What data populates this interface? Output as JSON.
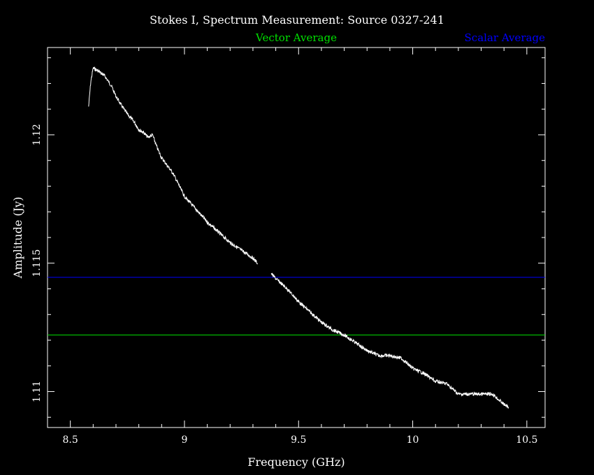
{
  "chart_data": {
    "type": "line",
    "title": "Stokes I, Spectrum Measurement: Source 0327-241",
    "xlabel": "Frequency (GHz)",
    "ylabel": "Amplitude (Jy)",
    "xlim": [
      8.4,
      10.58
    ],
    "ylim": [
      1.1086,
      1.1234
    ],
    "x_ticks": [
      8.5,
      9,
      9.5,
      10,
      10.5
    ],
    "x_tick_labels": [
      "8.5",
      "9",
      "9.5",
      "10",
      "10.5"
    ],
    "y_ticks": [
      1.11,
      1.115,
      1.12
    ],
    "y_tick_labels": [
      "1.11",
      "1.115",
      "1.12"
    ],
    "grid": false,
    "legend_placement": "top",
    "series": [
      {
        "name": "Vector Average",
        "kind": "hline",
        "y": 1.1122,
        "color": "#00e000"
      },
      {
        "name": "Scalar Average",
        "kind": "hline",
        "y": 1.11445,
        "color": "#0000ff"
      },
      {
        "kind": "spectrum",
        "color": "#ffffff",
        "segments": [
          {
            "x": [
              8.58,
              8.59,
              8.6,
              8.62,
              8.65,
              8.68,
              8.7,
              8.72,
              8.75,
              8.78,
              8.8,
              8.82,
              8.84,
              8.86,
              8.88,
              8.9,
              8.95,
              9.0,
              9.05,
              9.1,
              9.15,
              9.2,
              9.25,
              9.3,
              9.32
            ],
            "y": [
              1.1211,
              1.1221,
              1.1226,
              1.1225,
              1.1223,
              1.1219,
              1.1215,
              1.1212,
              1.1208,
              1.1205,
              1.1202,
              1.1201,
              1.1199,
              1.12,
              1.1195,
              1.1191,
              1.1185,
              1.1176,
              1.1171,
              1.1166,
              1.1162,
              1.1158,
              1.1155,
              1.1152,
              1.115
            ]
          },
          {
            "x": [
              9.38,
              9.4,
              9.45,
              9.5,
              9.55,
              9.6,
              9.65,
              9.7,
              9.75,
              9.8,
              9.85,
              9.9,
              9.95,
              10.0,
              10.05,
              10.1,
              10.15,
              10.2,
              10.25,
              10.3,
              10.35,
              10.4,
              10.42
            ],
            "y": [
              1.1146,
              1.1144,
              1.114,
              1.1135,
              1.1131,
              1.1127,
              1.1124,
              1.1122,
              1.1119,
              1.1116,
              1.1114,
              1.1114,
              1.1113,
              1.1109,
              1.1107,
              1.1104,
              1.1103,
              1.1099,
              1.1099,
              1.1099,
              1.1099,
              1.1095,
              1.1094
            ]
          }
        ]
      }
    ]
  }
}
